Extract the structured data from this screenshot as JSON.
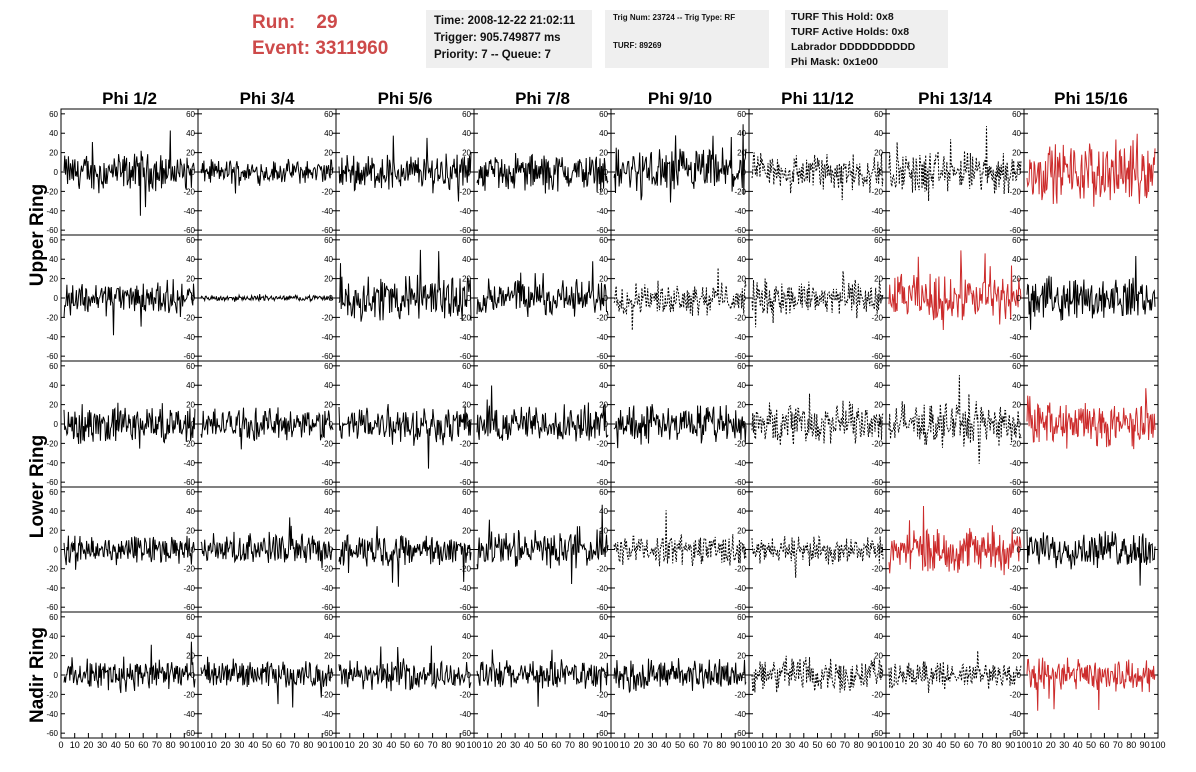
{
  "header": {
    "run_label": "Run:",
    "run_value": "29",
    "event_label": "Event:",
    "event_value": "3311960",
    "time_box": [
      "Time: 2008-12-22 21:02:11",
      "Trigger: 905.749877 ms",
      "Priority: 7 -- Queue: 7"
    ],
    "trig_box": [
      "Trig Num: 23724 -- Trig Type: RF",
      "TURF: 89269"
    ],
    "turf_box": [
      "TURF This Hold: 0x8",
      "TURF Active Holds: 0x8",
      "Labrador DDDDDDDDDD",
      "Phi Mask: 0x1e00"
    ]
  },
  "colors": {
    "run_text": "#cd4a4a",
    "info_bg": "#efefef",
    "trace_black": "#000000",
    "trace_red": "#cc2b2b"
  },
  "chart_data": {
    "type": "line",
    "columns": [
      "Phi 1/2",
      "Phi 3/4",
      "Phi 5/6",
      "Phi 7/8",
      "Phi 9/10",
      "Phi 11/12",
      "Phi 13/14",
      "Phi 15/16"
    ],
    "rows": [
      "Upper Ring",
      "Lower Ring",
      "Nadir Ring"
    ],
    "ylim": [
      -65,
      65
    ],
    "xlim": [
      0,
      100
    ],
    "yticks": [
      -60,
      -40,
      -20,
      0,
      20,
      40,
      60
    ],
    "xticks": [
      0,
      10,
      20,
      30,
      40,
      50,
      60,
      70,
      80,
      90,
      100
    ],
    "panel_styles": [
      [
        "solid",
        "solid",
        "solid",
        "solid",
        "solid",
        "dashed",
        "dashed",
        "red"
      ],
      [
        "solid",
        "solid",
        "solid",
        "solid",
        "dashed",
        "dashed",
        "red",
        "solid"
      ],
      [
        "solid",
        "solid",
        "solid",
        "solid",
        "solid",
        "dashed",
        "dashed",
        "red"
      ],
      [
        "solid",
        "solid",
        "solid",
        "solid",
        "dashed",
        "dashed",
        "red",
        "solid"
      ],
      [
        "solid",
        "solid",
        "solid",
        "solid",
        "solid",
        "dashed",
        "dashed",
        "red"
      ]
    ],
    "panel_amplitudes": [
      [
        14,
        9,
        14,
        14,
        18,
        14,
        16,
        22
      ],
      [
        13,
        2,
        18,
        14,
        12,
        14,
        18,
        15
      ],
      [
        14,
        12,
        15,
        14,
        14,
        16,
        16,
        17
      ],
      [
        11,
        12,
        12,
        14,
        12,
        10,
        17,
        14
      ],
      [
        12,
        10,
        11,
        11,
        12,
        14,
        10,
        13
      ]
    ]
  }
}
